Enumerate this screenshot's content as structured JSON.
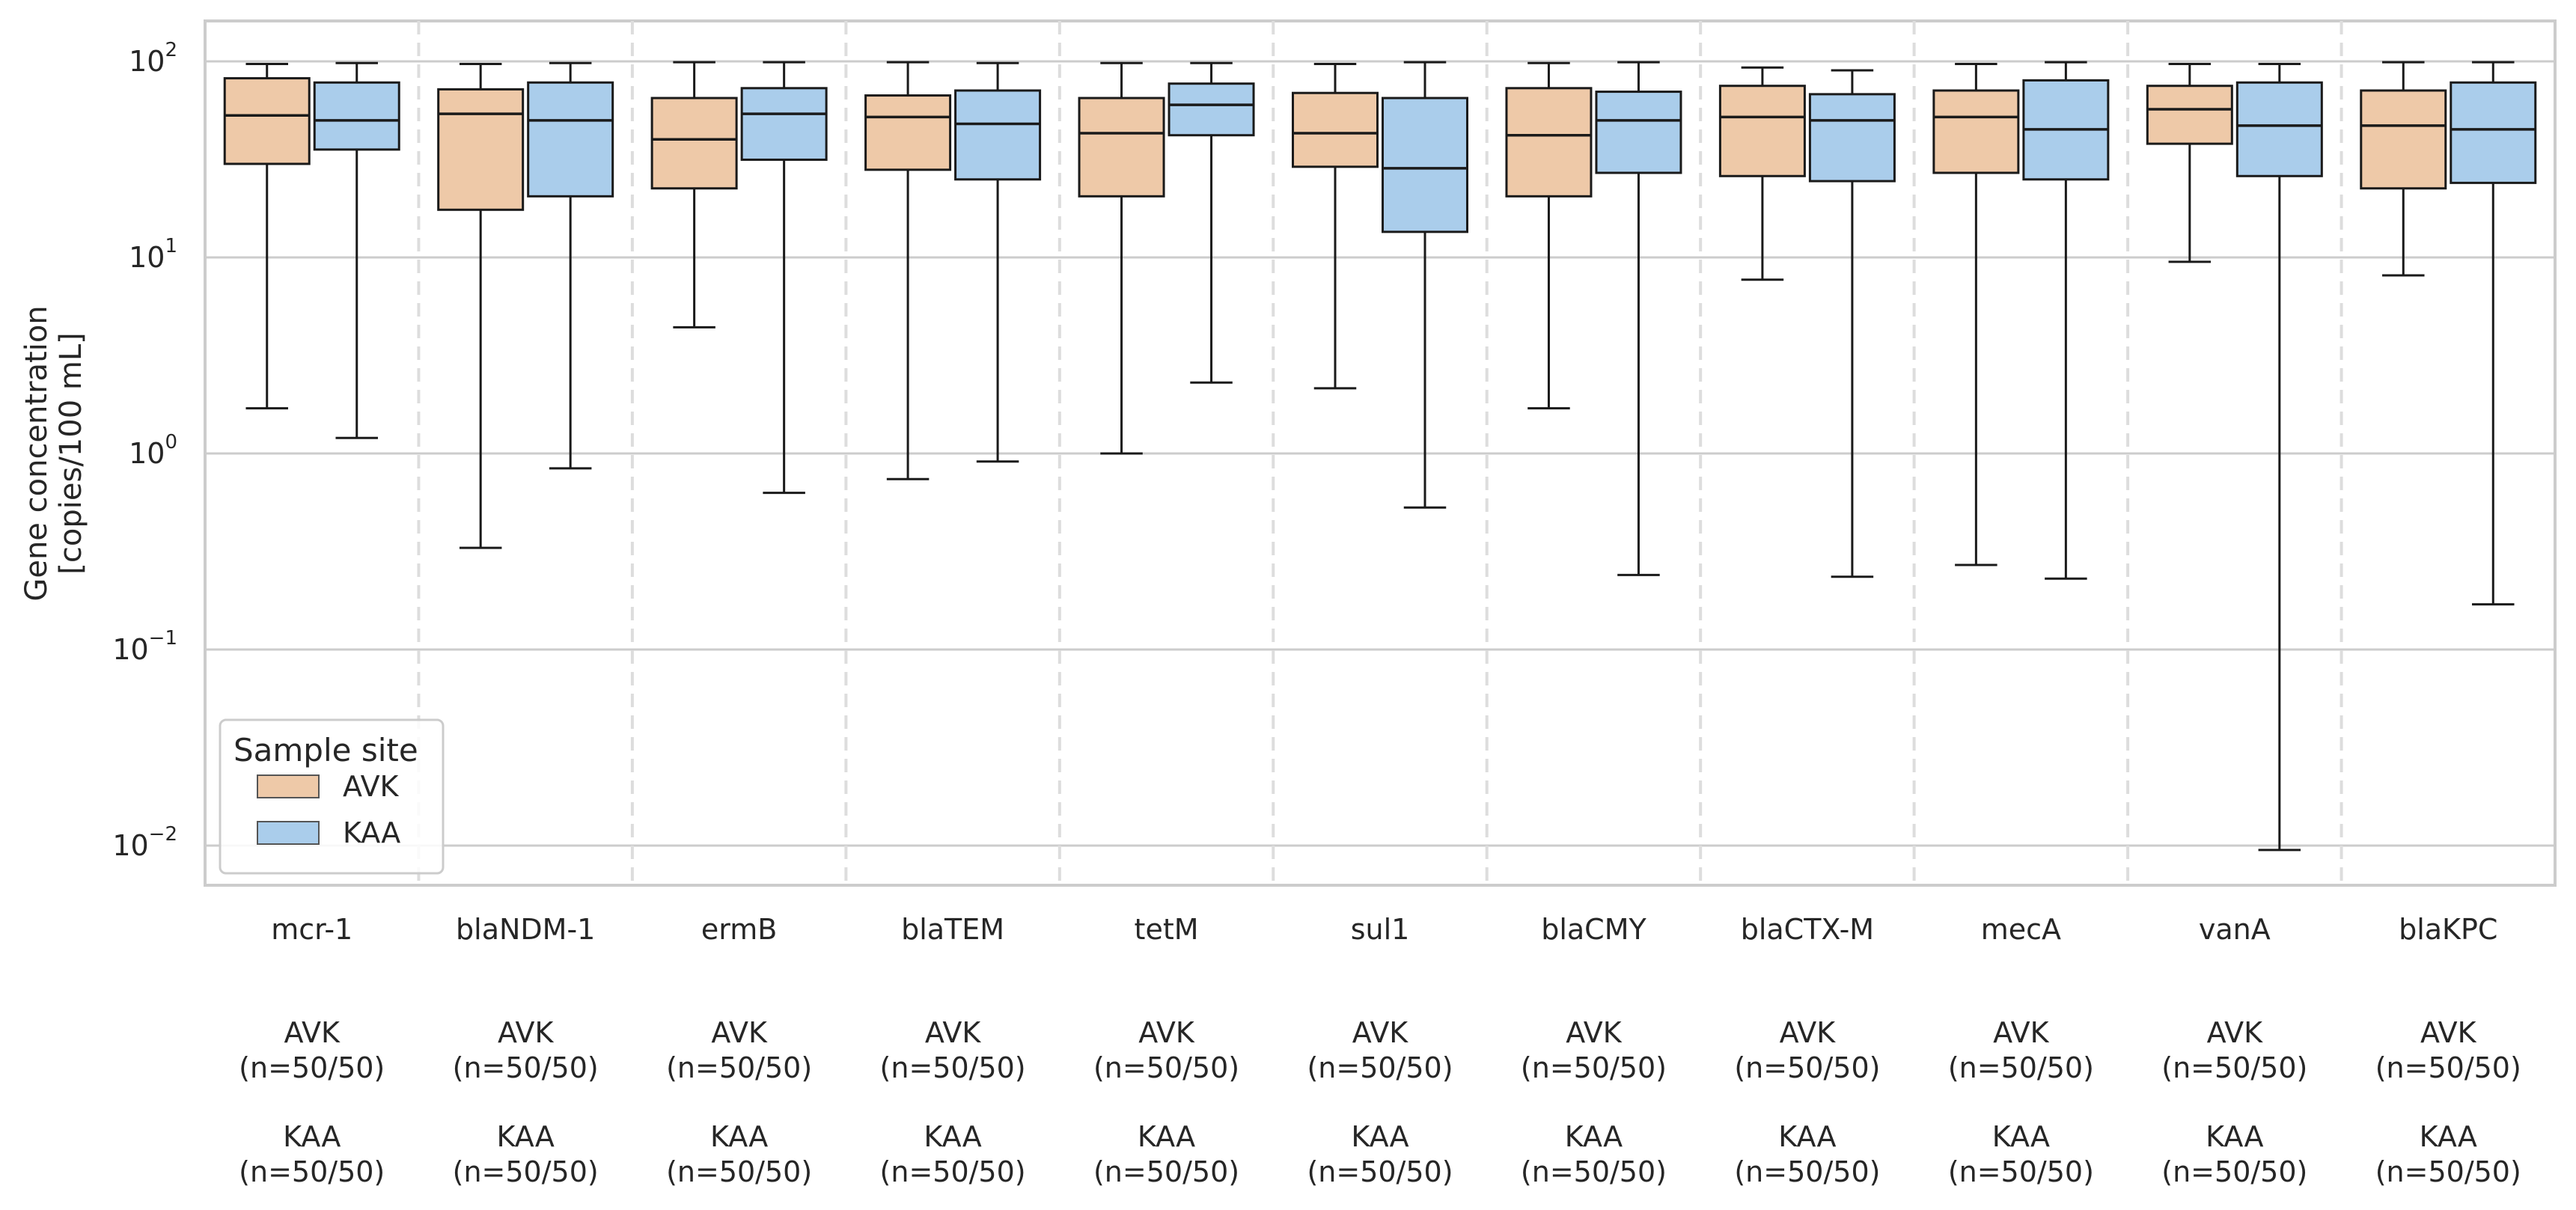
{
  "chart_data": {
    "type": "box",
    "ylabel_line1": "Gene concentration",
    "ylabel_line2": "[copies/100 mL]",
    "yscale": "log",
    "ylim": [
      0.006,
      160
    ],
    "yticks": [
      {
        "value": 100,
        "base": "10",
        "exp": "2"
      },
      {
        "value": 10,
        "base": "10",
        "exp": "1"
      },
      {
        "value": 1,
        "base": "10",
        "exp": "0"
      },
      {
        "value": 0.1,
        "base": "10",
        "exp": "−1"
      },
      {
        "value": 0.01,
        "base": "10",
        "exp": "−2"
      }
    ],
    "grid": true,
    "legend": {
      "title": "Sample site",
      "placement": "lower-left",
      "entries": [
        {
          "name": "AVK",
          "color": "#EEC9A8"
        },
        {
          "name": "KAA",
          "color": "#AACDEB"
        }
      ]
    },
    "categories": [
      "mcr-1",
      "blaNDM-1",
      "ermB",
      "blaTEM",
      "tetM",
      "sul1",
      "blaCMY",
      "blaCTX-M",
      "mecA",
      "vanA",
      "blaKPC"
    ],
    "series": [
      {
        "name": "AVK",
        "color": "#EEC9A8",
        "boxes": [
          {
            "whislo": 1.7,
            "q1": 30,
            "med": 53,
            "q3": 82,
            "whishi": 97
          },
          {
            "whislo": 0.33,
            "q1": 17.5,
            "med": 54,
            "q3": 72,
            "whishi": 97
          },
          {
            "whislo": 4.4,
            "q1": 22.5,
            "med": 40,
            "q3": 65,
            "whishi": 99
          },
          {
            "whislo": 0.74,
            "q1": 28,
            "med": 52,
            "q3": 67,
            "whishi": 99
          },
          {
            "whislo": 1.0,
            "q1": 20.5,
            "med": 43,
            "q3": 65,
            "whishi": 98
          },
          {
            "whislo": 2.15,
            "q1": 29,
            "med": 43,
            "q3": 69,
            "whishi": 97
          },
          {
            "whislo": 1.7,
            "q1": 20.5,
            "med": 42,
            "q3": 73,
            "whishi": 98
          },
          {
            "whislo": 7.7,
            "q1": 26,
            "med": 52,
            "q3": 75,
            "whishi": 93
          },
          {
            "whislo": 0.27,
            "q1": 27,
            "med": 52,
            "q3": 71,
            "whishi": 97
          },
          {
            "whislo": 9.5,
            "q1": 38,
            "med": 57,
            "q3": 75,
            "whishi": 97
          },
          {
            "whislo": 8.1,
            "q1": 22.5,
            "med": 47,
            "q3": 71,
            "whishi": 99
          }
        ],
        "counts": [
          "AVK",
          "(n=50/50)"
        ]
      },
      {
        "name": "KAA",
        "color": "#AACDEB",
        "boxes": [
          {
            "whislo": 1.2,
            "q1": 35.5,
            "med": 50,
            "q3": 78,
            "whishi": 98
          },
          {
            "whislo": 0.84,
            "q1": 20.5,
            "med": 50,
            "q3": 78,
            "whishi": 98
          },
          {
            "whislo": 0.63,
            "q1": 31.5,
            "med": 54,
            "q3": 73,
            "whishi": 99
          },
          {
            "whislo": 0.91,
            "q1": 25,
            "med": 48,
            "q3": 71,
            "whishi": 98
          },
          {
            "whislo": 2.3,
            "q1": 42,
            "med": 60,
            "q3": 77,
            "whishi": 98
          },
          {
            "whislo": 0.53,
            "q1": 13.5,
            "med": 28.5,
            "q3": 65,
            "whishi": 99
          },
          {
            "whislo": 0.24,
            "q1": 27,
            "med": 50,
            "q3": 70,
            "whishi": 99
          },
          {
            "whislo": 0.235,
            "q1": 24.5,
            "med": 50,
            "q3": 68,
            "whishi": 90
          },
          {
            "whislo": 0.23,
            "q1": 25,
            "med": 45,
            "q3": 80,
            "whishi": 99
          },
          {
            "whislo": 0.0095,
            "q1": 26,
            "med": 47,
            "q3": 78,
            "whishi": 97
          },
          {
            "whislo": 0.17,
            "q1": 24,
            "med": 45,
            "q3": 78,
            "whishi": 99
          }
        ],
        "counts": [
          "KAA",
          "(n=50/50)"
        ]
      }
    ]
  }
}
